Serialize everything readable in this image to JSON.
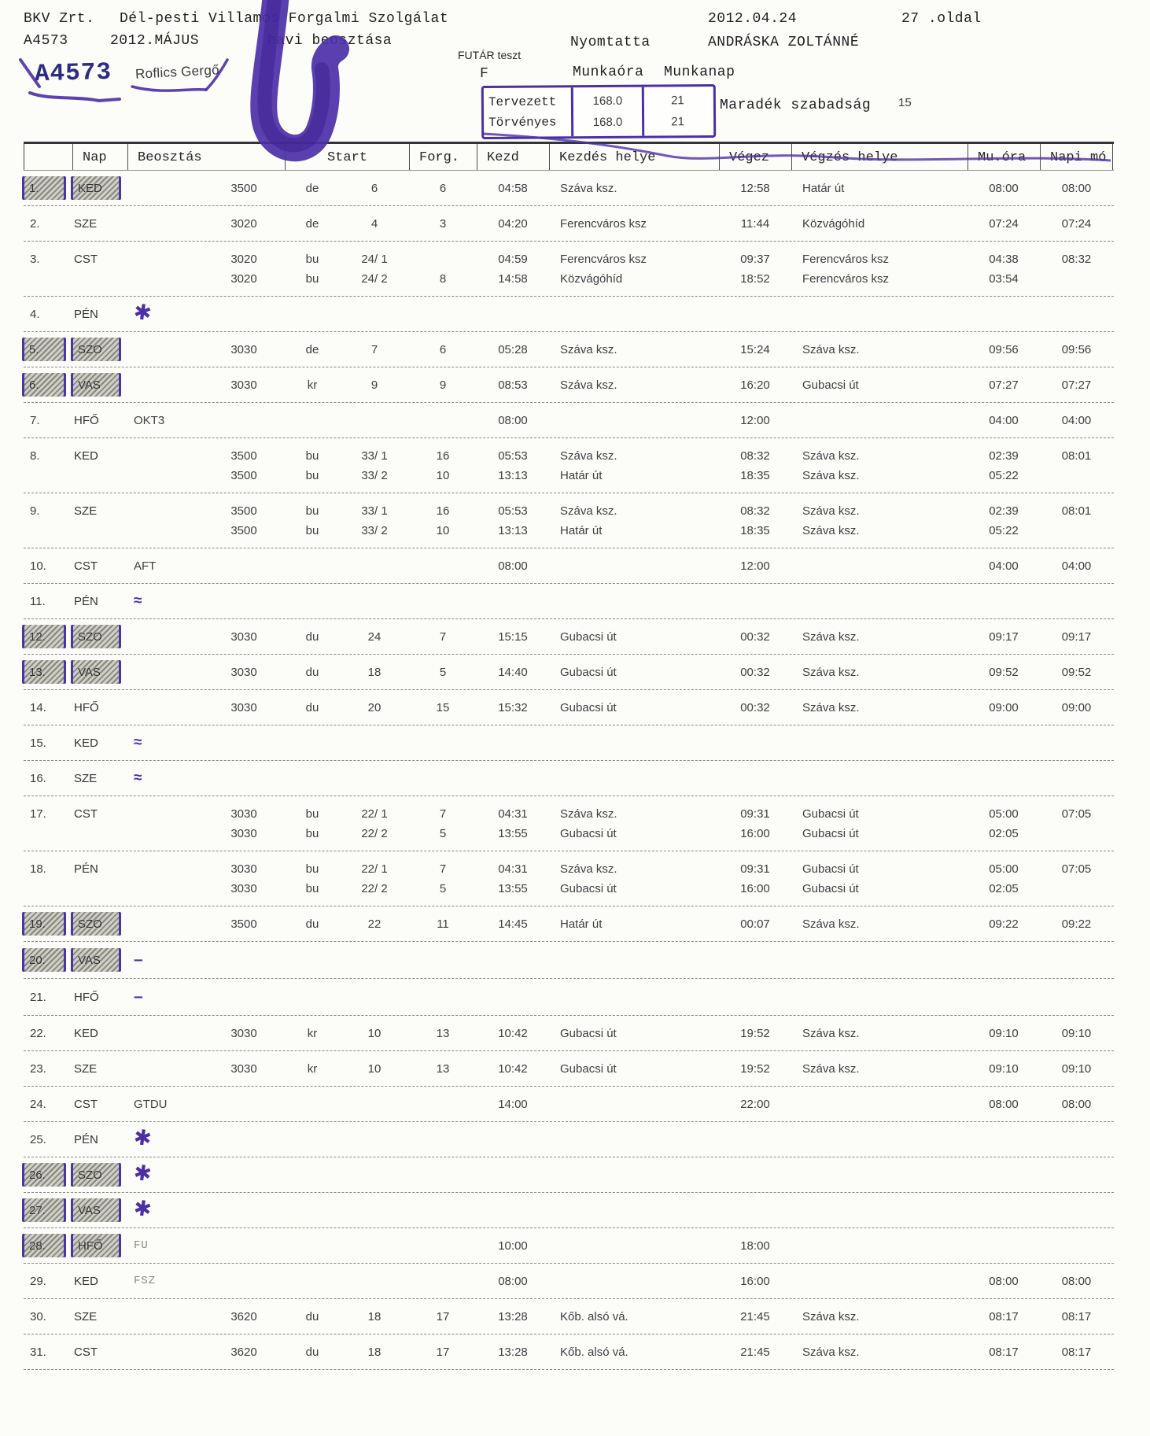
{
  "page": {
    "company": "BKV Zrt.",
    "division": "Dél-pesti Villamos Forgalmi Szolgálat",
    "print_date": "2012.04.24",
    "page_number": "27 .oldal",
    "employee_id": "A4573",
    "month": "2012.MÁJUS",
    "subtitle": "havi beosztása",
    "printed_by_label": "Nyomtatta",
    "printed_by": "ANDRÁSKA ZOLTÁNNÉ",
    "futar_note": "FUTÁR teszt",
    "futar_code": "F",
    "handwritten_id": "A4573",
    "signature": "Roflics Gergő"
  },
  "summary": {
    "col_hours": "Munkaóra",
    "col_days": "Munkanap",
    "rows": [
      {
        "label": "Tervezett",
        "munkaora": "168.0",
        "munkanap": "21"
      },
      {
        "label": "Törvényes",
        "munkaora": "168.0",
        "munkanap": "21"
      }
    ],
    "leave_label": "Maradék szabadság",
    "leave_value": "15"
  },
  "icons": {
    "star": "✱",
    "squiggle": "≈",
    "dash": "–"
  },
  "table": {
    "headers": [
      "Nap",
      "Beosztás",
      "Start",
      "Forg.",
      "Kezd",
      "Kezdés helye",
      "Végez",
      "Végzés helye",
      "Mu.óra",
      "Napi mó"
    ],
    "rows": [
      {
        "num": "1.",
        "day": "KED",
        "hl": true,
        "lines": [
          [
            "3500",
            "de",
            "6",
            "6",
            "04:58",
            "Száva ksz.",
            "12:58",
            "Határ út",
            "08:00"
          ]
        ],
        "napimo": "08:00"
      },
      {
        "num": "2.",
        "day": "SZE",
        "lines": [
          [
            "3020",
            "de",
            "4",
            "3",
            "04:20",
            "Ferencváros ksz",
            "11:44",
            "Közvágóhíd",
            "07:24"
          ]
        ],
        "napimo": "07:24"
      },
      {
        "num": "3.",
        "day": "CST",
        "lines": [
          [
            "3020",
            "bu",
            "24/ 1",
            "",
            "04:59",
            "Ferencváros ksz",
            "09:37",
            "Ferencváros ksz",
            "04:38"
          ],
          [
            "3020",
            "bu",
            "24/ 2",
            "8",
            "14:58",
            "Közvágóhíd",
            "18:52",
            "Ferencváros ksz",
            "03:54"
          ]
        ],
        "napimo": "08:32"
      },
      {
        "num": "4.",
        "day": "PÉN",
        "mark": "star"
      },
      {
        "num": "5.",
        "day": "SZO",
        "hl": true,
        "lines": [
          [
            "3030",
            "de",
            "7",
            "6",
            "05:28",
            "Száva ksz.",
            "15:24",
            "Száva ksz.",
            "09:56"
          ]
        ],
        "napimo": "09:56"
      },
      {
        "num": "6.",
        "day": "VAS",
        "hl": true,
        "lines": [
          [
            "3030",
            "kr",
            "9",
            "9",
            "08:53",
            "Száva ksz.",
            "16:20",
            "Gubacsi út",
            "07:27"
          ]
        ],
        "napimo": "07:27"
      },
      {
        "num": "7.",
        "day": "HFŐ",
        "code": "OKT3",
        "lines": [
          [
            "",
            "",
            "",
            "",
            "08:00",
            "",
            "12:00",
            "",
            "04:00"
          ]
        ],
        "napimo": "04:00"
      },
      {
        "num": "8.",
        "day": "KED",
        "lines": [
          [
            "3500",
            "bu",
            "33/ 1",
            "16",
            "05:53",
            "Száva ksz.",
            "08:32",
            "Száva ksz.",
            "02:39"
          ],
          [
            "3500",
            "bu",
            "33/ 2",
            "10",
            "13:13",
            "Határ út",
            "18:35",
            "Száva ksz.",
            "05:22"
          ]
        ],
        "napimo": "08:01"
      },
      {
        "num": "9.",
        "day": "SZE",
        "lines": [
          [
            "3500",
            "bu",
            "33/ 1",
            "16",
            "05:53",
            "Száva ksz.",
            "08:32",
            "Száva ksz.",
            "02:39"
          ],
          [
            "3500",
            "bu",
            "33/ 2",
            "10",
            "13:13",
            "Határ út",
            "18:35",
            "Száva ksz.",
            "05:22"
          ]
        ],
        "napimo": "08:01"
      },
      {
        "num": "10.",
        "day": "CST",
        "code": "AFT",
        "lines": [
          [
            "",
            "",
            "",
            "",
            "08:00",
            "",
            "12:00",
            "",
            "04:00"
          ]
        ],
        "napimo": "04:00"
      },
      {
        "num": "11.",
        "day": "PÉN",
        "mark": "squiggle"
      },
      {
        "num": "12.",
        "day": "SZO",
        "hl": true,
        "lines": [
          [
            "3030",
            "du",
            "24",
            "7",
            "15:15",
            "Gubacsi út",
            "00:32",
            "Száva ksz.",
            "09:17"
          ]
        ],
        "napimo": "09:17"
      },
      {
        "num": "13.",
        "day": "VAS",
        "hl": true,
        "lines": [
          [
            "3030",
            "du",
            "18",
            "5",
            "14:40",
            "Gubacsi út",
            "00:32",
            "Száva ksz.",
            "09:52"
          ]
        ],
        "napimo": "09:52"
      },
      {
        "num": "14.",
        "day": "HFŐ",
        "lines": [
          [
            "3030",
            "du",
            "20",
            "15",
            "15:32",
            "Gubacsi út",
            "00:32",
            "Száva ksz.",
            "09:00"
          ]
        ],
        "napimo": "09:00"
      },
      {
        "num": "15.",
        "day": "KED",
        "mark": "squiggle"
      },
      {
        "num": "16.",
        "day": "SZE",
        "mark": "squiggle"
      },
      {
        "num": "17.",
        "day": "CST",
        "lines": [
          [
            "3030",
            "bu",
            "22/ 1",
            "7",
            "04:31",
            "Száva ksz.",
            "09:31",
            "Gubacsi út",
            "05:00"
          ],
          [
            "3030",
            "bu",
            "22/ 2",
            "5",
            "13:55",
            "Gubacsi út",
            "16:00",
            "Gubacsi út",
            "02:05"
          ]
        ],
        "napimo": "07:05"
      },
      {
        "num": "18.",
        "day": "PÉN",
        "lines": [
          [
            "3030",
            "bu",
            "22/ 1",
            "7",
            "04:31",
            "Száva ksz.",
            "09:31",
            "Gubacsi út",
            "05:00"
          ],
          [
            "3030",
            "bu",
            "22/ 2",
            "5",
            "13:55",
            "Gubacsi út",
            "16:00",
            "Gubacsi út",
            "02:05"
          ]
        ],
        "napimo": "07:05"
      },
      {
        "num": "19.",
        "day": "SZO",
        "hl": true,
        "lines": [
          [
            "3500",
            "du",
            "22",
            "11",
            "14:45",
            "Határ út",
            "00:07",
            "Száva ksz.",
            "09:22"
          ]
        ],
        "napimo": "09:22"
      },
      {
        "num": "20.",
        "day": "VAS",
        "hl": true,
        "mark": "dash"
      },
      {
        "num": "21.",
        "day": "HFŐ",
        "mark": "dash"
      },
      {
        "num": "22.",
        "day": "KED",
        "lines": [
          [
            "3030",
            "kr",
            "10",
            "13",
            "10:42",
            "Gubacsi út",
            "19:52",
            "Száva ksz.",
            "09:10"
          ]
        ],
        "napimo": "09:10"
      },
      {
        "num": "23.",
        "day": "SZE",
        "lines": [
          [
            "3030",
            "kr",
            "10",
            "13",
            "10:42",
            "Gubacsi út",
            "19:52",
            "Száva ksz.",
            "09:10"
          ]
        ],
        "napimo": "09:10"
      },
      {
        "num": "24.",
        "day": "CST",
        "code": "GTDU",
        "lines": [
          [
            "",
            "",
            "",
            "",
            "14:00",
            "",
            "22:00",
            "",
            "08:00"
          ]
        ],
        "napimo": "08:00"
      },
      {
        "num": "25.",
        "day": "PÉN",
        "mark": "star"
      },
      {
        "num": "26.",
        "day": "SZO",
        "hl": true,
        "mark": "star"
      },
      {
        "num": "27.",
        "day": "VAS",
        "hl": true,
        "mark": "star"
      },
      {
        "num": "28.",
        "day": "HFŐ",
        "hl": true,
        "code": "FU",
        "faint": true,
        "lines": [
          [
            "",
            "",
            "",
            "",
            "10:00",
            "",
            "18:00",
            "",
            ""
          ]
        ]
      },
      {
        "num": "29.",
        "day": "KED",
        "code": "FSZ",
        "faint": true,
        "lines": [
          [
            "",
            "",
            "",
            "",
            "08:00",
            "",
            "16:00",
            "",
            "08:00"
          ]
        ],
        "napimo": "08:00"
      },
      {
        "num": "30.",
        "day": "SZE",
        "lines": [
          [
            "3620",
            "du",
            "18",
            "17",
            "13:28",
            "Kőb. alsó vá.",
            "21:45",
            "Száva ksz.",
            "08:17"
          ]
        ],
        "napimo": "08:17"
      },
      {
        "num": "31.",
        "day": "CST",
        "lines": [
          [
            "3620",
            "du",
            "18",
            "17",
            "13:28",
            "Kőb. alsó vá.",
            "21:45",
            "Száva ksz.",
            "08:17"
          ]
        ],
        "napimo": "08:17"
      }
    ]
  }
}
